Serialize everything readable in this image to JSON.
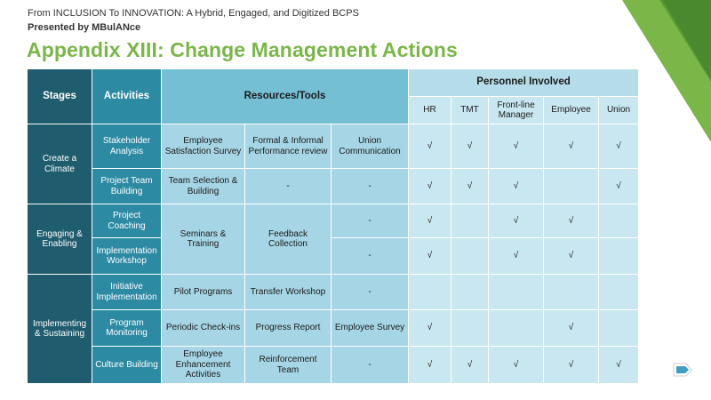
{
  "header": {
    "line1": "From INCLUSION To INNOVATION: A Hybrid, Engaged, and Digitized BCPS",
    "line2": "Presented by MBulANce",
    "title": "Appendix XIII: Change Management Actions"
  },
  "table": {
    "col_stages": "Stages",
    "col_activities": "Activities",
    "col_resources": "Resources/Tools",
    "col_personnel": "Personnel Involved",
    "personnel": [
      "HR",
      "TMT",
      "Front-line Manager",
      "Employee",
      "Union"
    ],
    "stage1": "Create a Climate",
    "stage2": "Engaging & Enabling",
    "stage3": "Implementing & Sustaining",
    "r1": {
      "activity": "Stakeholder Analysis",
      "t1": "Employee Satisfaction Survey",
      "t2": "Formal & Informal Performance review",
      "t3": "Union Communication",
      "p": [
        "√",
        "√",
        "√",
        "√",
        "√"
      ]
    },
    "r2": {
      "activity": "Project Team Building",
      "t1": "Team Selection & Building",
      "t2": "-",
      "t3": "-",
      "p": [
        "√",
        "√",
        "√",
        "",
        "√"
      ]
    },
    "r3": {
      "activity": "Project Coaching",
      "t3": "-",
      "p": [
        "√",
        "",
        "√",
        "√",
        ""
      ]
    },
    "r34": {
      "t1": "Seminars & Training",
      "t2": "Feedback Collection"
    },
    "r4": {
      "activity": "Implementation Workshop",
      "t3": "-",
      "p": [
        "√",
        "",
        "√",
        "√",
        ""
      ]
    },
    "r5": {
      "activity": "Initiative Implementation",
      "t1": "Pilot Programs",
      "t2": "Transfer Workshop",
      "t3": "-",
      "p": [
        "",
        "",
        "",
        "",
        ""
      ]
    },
    "r6": {
      "activity": "Program Monitoring",
      "t1": "Periodic Check-ins",
      "t2": "Progress Report",
      "t3": "Employee Survey",
      "p": [
        "√",
        "",
        "",
        "√",
        ""
      ]
    },
    "r7": {
      "activity": "Culture Building",
      "t1": "Employee Enhancement Activities",
      "t2": "Reinforcement Team",
      "t3": "-",
      "p": [
        "√",
        "√",
        "√",
        "√",
        "√"
      ]
    }
  },
  "colors": {
    "accent_green": "#7ab648",
    "dark_teal": "#1e5c6e",
    "mid_teal": "#2d8aa3",
    "light_blue": "#a6d6e5"
  },
  "icons": {
    "nav": "back-arrow-icon"
  }
}
